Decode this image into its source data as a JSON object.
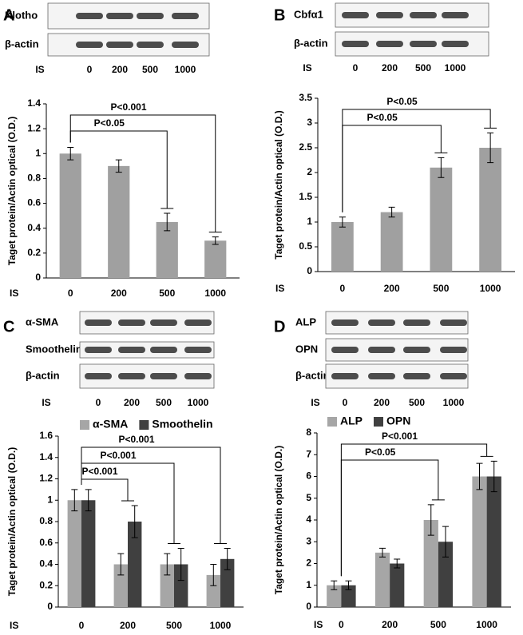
{
  "chart_data": [
    {
      "type": "bar",
      "panel": "A",
      "blot": {
        "rows": [
          "Klotho",
          "β-actin"
        ],
        "lane_title": "IS",
        "lanes": [
          "0",
          "200",
          "500",
          "1000"
        ]
      },
      "ylabel": "Taget protein/Actin optical (O.D.)",
      "xlabel": "IS",
      "categories": [
        "0",
        "200",
        "500",
        "1000"
      ],
      "series": [
        {
          "color": "#a0a0a0",
          "values": [
            1.0,
            0.9,
            0.45,
            0.3
          ],
          "errors": [
            0.05,
            0.05,
            0.07,
            0.03
          ]
        }
      ],
      "ylim": [
        0,
        1.4
      ],
      "yticks": [
        0,
        0.2,
        0.4,
        0.6,
        0.8,
        1,
        1.2,
        1.4
      ],
      "annotations": [
        {
          "text": "P<0.05",
          "between": [
            0,
            2
          ]
        },
        {
          "text": "P<0.001",
          "between": [
            0,
            3
          ]
        }
      ]
    },
    {
      "type": "bar",
      "panel": "B",
      "blot": {
        "rows": [
          "Cbfα1",
          "β-actin"
        ],
        "lane_title": "IS",
        "lanes": [
          "0",
          "200",
          "500",
          "1000"
        ]
      },
      "ylabel": "Taget protein/Actin optical (O.D.)",
      "xlabel": "IS",
      "categories": [
        "0",
        "200",
        "500",
        "1000"
      ],
      "series": [
        {
          "color": "#a0a0a0",
          "values": [
            1.0,
            1.2,
            2.1,
            2.5
          ],
          "errors": [
            0.1,
            0.1,
            0.2,
            0.3
          ]
        }
      ],
      "ylim": [
        0,
        3.5
      ],
      "yticks": [
        0,
        0.5,
        1,
        1.5,
        2,
        2.5,
        3,
        3.5
      ],
      "annotations": [
        {
          "text": "P<0.05",
          "between": [
            0,
            2
          ]
        },
        {
          "text": "P<0.05",
          "between": [
            0,
            3
          ]
        }
      ]
    },
    {
      "type": "bar",
      "panel": "C",
      "blot": {
        "rows": [
          "α-SMA",
          "Smoothelin",
          "β-actin"
        ],
        "lane_title": "IS",
        "lanes": [
          "0",
          "200",
          "500",
          "1000"
        ]
      },
      "ylabel": "Taget protein/Actin optical (O.D.)",
      "xlabel": "IS",
      "categories": [
        "0",
        "200",
        "500",
        "1000"
      ],
      "series": [
        {
          "name": "α-SMA",
          "color": "#a6a6a6",
          "values": [
            1.0,
            0.4,
            0.4,
            0.3
          ],
          "errors": [
            0.1,
            0.1,
            0.1,
            0.1
          ]
        },
        {
          "name": "Smoothelin",
          "color": "#404040",
          "values": [
            1.0,
            0.8,
            0.4,
            0.45
          ],
          "errors": [
            0.1,
            0.15,
            0.15,
            0.1
          ]
        }
      ],
      "ylim": [
        0,
        1.6
      ],
      "yticks": [
        0,
        0.2,
        0.4,
        0.6,
        0.8,
        1,
        1.2,
        1.4,
        1.6
      ],
      "annotations": [
        {
          "text": "P<0.001",
          "between": [
            0,
            1
          ]
        },
        {
          "text": "P<0.001",
          "between": [
            0,
            2
          ]
        },
        {
          "text": "P<0.001",
          "between": [
            0,
            3
          ]
        }
      ]
    },
    {
      "type": "bar",
      "panel": "D",
      "blot": {
        "rows": [
          "ALP",
          "OPN",
          "β-actin"
        ],
        "lane_title": "IS",
        "lanes": [
          "0",
          "200",
          "500",
          "1000"
        ]
      },
      "ylabel": "Taget protein/Actin optical (O.D.)",
      "xlabel": "IS",
      "categories": [
        "0",
        "200",
        "500",
        "1000"
      ],
      "series": [
        {
          "name": "ALP",
          "color": "#a6a6a6",
          "values": [
            1,
            2.5,
            4,
            6
          ],
          "errors": [
            0.2,
            0.2,
            0.7,
            0.6
          ]
        },
        {
          "name": "OPN",
          "color": "#404040",
          "values": [
            1,
            2,
            3,
            6
          ],
          "errors": [
            0.2,
            0.2,
            0.7,
            0.7
          ]
        }
      ],
      "ylim": [
        0,
        8
      ],
      "yticks": [
        0,
        1,
        2,
        3,
        4,
        5,
        6,
        7,
        8
      ],
      "annotations": [
        {
          "text": "P<0.05",
          "between": [
            0,
            2
          ]
        },
        {
          "text": "P<0.001",
          "between": [
            0,
            3
          ]
        }
      ]
    }
  ]
}
